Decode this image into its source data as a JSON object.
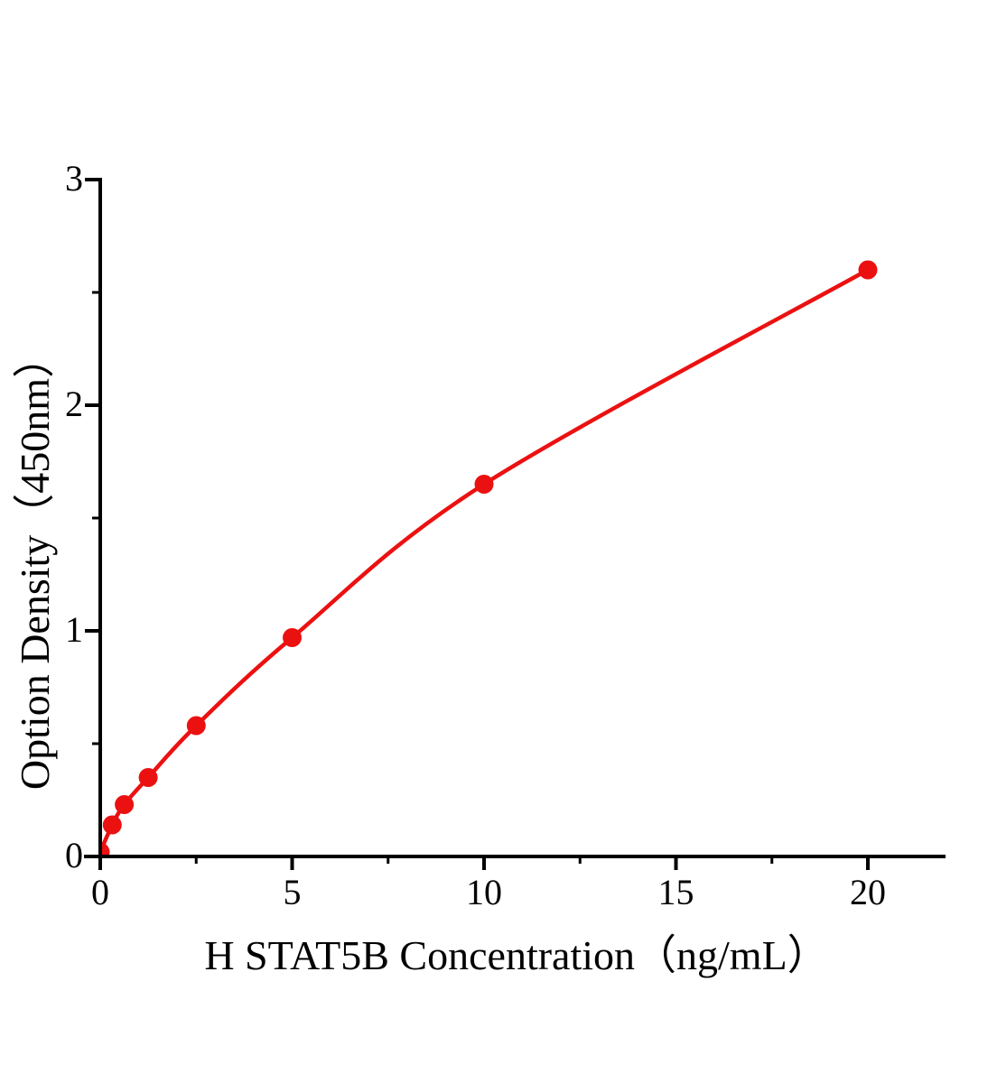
{
  "chart_data": {
    "type": "line",
    "title": "",
    "xlabel": "H STAT5B Concentration（ng/mL）",
    "ylabel": "Option Density（450nm）",
    "x": [
      0,
      0.313,
      0.625,
      1.25,
      2.5,
      5,
      10,
      20
    ],
    "y": [
      0.02,
      0.14,
      0.23,
      0.35,
      0.58,
      0.97,
      1.65,
      2.6
    ],
    "xlim": [
      0,
      22
    ],
    "ylim": [
      0,
      3
    ],
    "x_ticks": [
      0,
      5,
      10,
      15,
      20
    ],
    "x_minor_ticks": [
      2.5,
      7.5,
      12.5,
      17.5
    ],
    "y_ticks": [
      0,
      1,
      2,
      3
    ],
    "y_minor_ticks": [
      0.5,
      1.5,
      2.5
    ],
    "grid": false,
    "legend": "none",
    "line_color": "#ec1111",
    "marker_color": "#ec1111",
    "marker": "circle",
    "axis_color": "#000000"
  }
}
